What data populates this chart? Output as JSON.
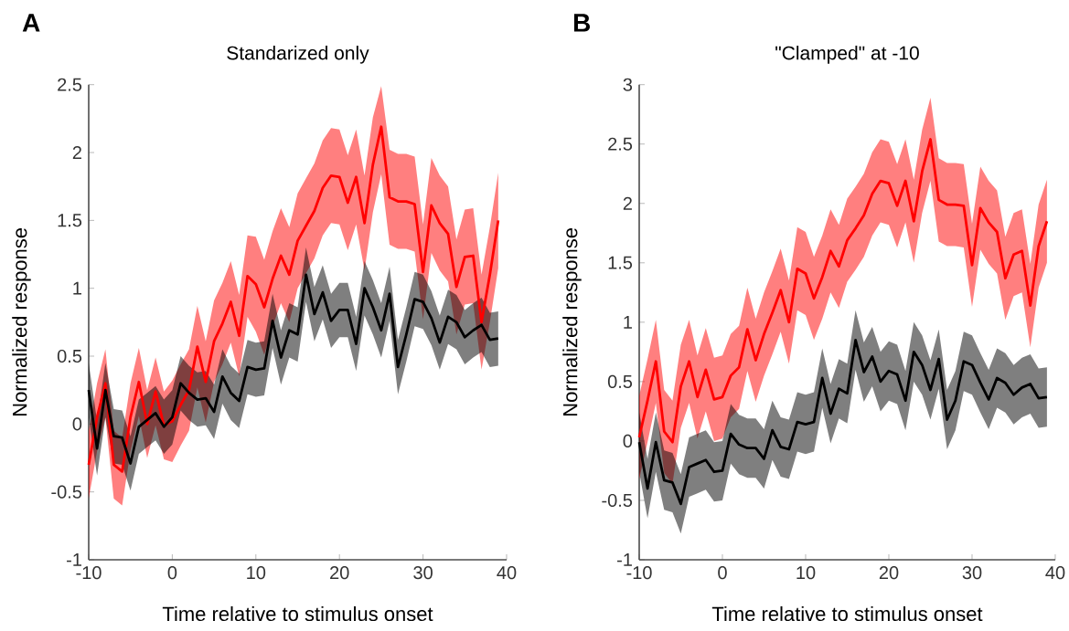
{
  "chart_data": [
    {
      "type": "line",
      "title": "Standarized only",
      "xlabel": "Time relative to stimulus onset",
      "ylabel": "Normalized response",
      "annotations": [
        "A"
      ],
      "x": [
        -10,
        -9,
        -8,
        -7,
        -6,
        -5,
        -4,
        -3,
        -2,
        -1,
        0,
        1,
        2,
        3,
        4,
        5,
        6,
        7,
        8,
        9,
        10,
        11,
        12,
        13,
        14,
        15,
        16,
        17,
        18,
        19,
        20,
        21,
        22,
        23,
        24,
        25,
        26,
        27,
        28,
        29,
        30,
        31,
        32,
        33,
        34,
        35,
        36,
        37,
        38,
        39
      ],
      "xlim": [
        -10,
        40
      ],
      "xticks": [
        -10,
        0,
        10,
        20,
        30,
        40
      ],
      "ylim": [
        -1,
        2.5
      ],
      "yticks": [
        -1,
        -0.5,
        0,
        0.5,
        1,
        1.5,
        2,
        2.5
      ],
      "series": [
        {
          "color": "#ff0000",
          "values": [
            -0.3,
            0.05,
            0.3,
            -0.3,
            -0.35,
            0.05,
            0.31,
            0.0,
            0.24,
            -0.01,
            0.02,
            0.14,
            0.25,
            0.57,
            0.31,
            0.61,
            0.74,
            0.9,
            0.65,
            1.09,
            1.03,
            0.86,
            1.07,
            1.24,
            1.1,
            1.35,
            1.46,
            1.57,
            1.74,
            1.83,
            1.82,
            1.63,
            1.82,
            1.48,
            1.91,
            2.19,
            1.67,
            1.64,
            1.64,
            1.62,
            1.12,
            1.61,
            1.48,
            1.4,
            1.01,
            1.23,
            1.24,
            0.75,
            1.1,
            1.5
          ],
          "upper": [
            -0.05,
            0.3,
            0.55,
            -0.05,
            -0.1,
            0.3,
            0.56,
            0.25,
            0.49,
            0.24,
            0.32,
            0.44,
            0.55,
            0.87,
            0.61,
            0.91,
            1.04,
            1.2,
            0.95,
            1.39,
            1.38,
            1.21,
            1.42,
            1.59,
            1.45,
            1.7,
            1.81,
            1.92,
            2.09,
            2.18,
            2.17,
            1.98,
            2.17,
            1.83,
            2.26,
            2.49,
            2.02,
            1.99,
            1.99,
            1.97,
            1.47,
            1.96,
            1.83,
            1.75,
            1.36,
            1.58,
            1.59,
            1.1,
            1.45,
            1.85
          ],
          "lower": [
            -0.55,
            -0.2,
            0.05,
            -0.55,
            -0.6,
            -0.2,
            0.06,
            -0.25,
            -0.01,
            -0.26,
            -0.28,
            -0.16,
            -0.05,
            0.27,
            0.01,
            0.31,
            0.44,
            0.6,
            0.35,
            0.79,
            0.68,
            0.51,
            0.72,
            0.89,
            0.75,
            1.0,
            1.11,
            1.22,
            1.39,
            1.48,
            1.47,
            1.28,
            1.47,
            1.13,
            1.56,
            1.84,
            1.32,
            1.29,
            1.29,
            1.27,
            0.77,
            1.26,
            1.13,
            1.05,
            0.66,
            0.88,
            0.89,
            0.4,
            0.75,
            1.15
          ]
        },
        {
          "color": "#000000",
          "values": [
            0.25,
            -0.18,
            0.25,
            -0.09,
            -0.1,
            -0.29,
            -0.02,
            0.03,
            0.08,
            -0.02,
            0.05,
            0.3,
            0.23,
            0.18,
            0.19,
            0.09,
            0.35,
            0.23,
            0.17,
            0.42,
            0.4,
            0.41,
            0.76,
            0.49,
            0.69,
            0.66,
            1.1,
            0.81,
            0.97,
            0.76,
            0.84,
            0.84,
            0.59,
            1.0,
            0.86,
            0.69,
            0.96,
            0.42,
            0.66,
            0.92,
            0.9,
            0.78,
            0.6,
            0.79,
            0.75,
            0.64,
            0.69,
            0.73,
            0.62,
            0.63
          ],
          "upper": [
            0.45,
            0.02,
            0.45,
            0.11,
            0.1,
            -0.09,
            0.18,
            0.23,
            0.28,
            0.18,
            0.25,
            0.5,
            0.43,
            0.38,
            0.39,
            0.29,
            0.55,
            0.43,
            0.37,
            0.62,
            0.6,
            0.61,
            0.96,
            0.69,
            0.89,
            0.86,
            1.3,
            1.01,
            1.17,
            0.96,
            1.04,
            1.04,
            0.79,
            1.2,
            1.06,
            0.89,
            1.16,
            0.62,
            0.86,
            1.12,
            1.1,
            0.98,
            0.8,
            0.99,
            0.95,
            0.84,
            0.89,
            0.93,
            0.82,
            0.83
          ],
          "lower": [
            0.05,
            -0.38,
            0.05,
            -0.29,
            -0.3,
            -0.49,
            -0.22,
            -0.17,
            -0.12,
            -0.22,
            -0.15,
            0.1,
            0.03,
            -0.02,
            -0.01,
            -0.11,
            0.15,
            0.03,
            -0.03,
            0.22,
            0.2,
            0.21,
            0.56,
            0.29,
            0.49,
            0.46,
            0.9,
            0.61,
            0.77,
            0.56,
            0.64,
            0.64,
            0.39,
            0.8,
            0.66,
            0.49,
            0.76,
            0.22,
            0.46,
            0.72,
            0.7,
            0.58,
            0.4,
            0.59,
            0.55,
            0.44,
            0.49,
            0.53,
            0.42,
            0.43
          ]
        }
      ]
    },
    {
      "type": "line",
      "title": "\"Clamped\" at -10",
      "xlabel": "Time relative to stimulus onset",
      "ylabel": "Normalized response",
      "annotations": [
        "B"
      ],
      "x": [
        -10,
        -9,
        -8,
        -7,
        -6,
        -5,
        -4,
        -3,
        -2,
        -1,
        0,
        1,
        2,
        3,
        4,
        5,
        6,
        7,
        8,
        9,
        10,
        11,
        12,
        13,
        14,
        15,
        16,
        17,
        18,
        19,
        20,
        21,
        22,
        23,
        24,
        25,
        26,
        27,
        28,
        29,
        30,
        31,
        32,
        33,
        34,
        35,
        36,
        37,
        38,
        39
      ],
      "xlim": [
        -10,
        40
      ],
      "xticks": [
        -10,
        0,
        10,
        20,
        30,
        40
      ],
      "ylim": [
        -1,
        3
      ],
      "yticks": [
        -1,
        -0.5,
        0,
        0.5,
        1,
        1.5,
        2,
        2.5,
        3
      ],
      "series": [
        {
          "color": "#ff0000",
          "values": [
            0.03,
            0.34,
            0.67,
            0.08,
            -0.01,
            0.46,
            0.67,
            0.37,
            0.6,
            0.35,
            0.37,
            0.55,
            0.62,
            0.94,
            0.68,
            0.9,
            1.08,
            1.27,
            1.0,
            1.45,
            1.41,
            1.2,
            1.38,
            1.6,
            1.47,
            1.69,
            1.79,
            1.9,
            2.08,
            2.19,
            2.17,
            1.98,
            2.19,
            1.85,
            2.27,
            2.54,
            2.03,
            1.99,
            1.99,
            1.98,
            1.48,
            1.96,
            1.84,
            1.76,
            1.37,
            1.57,
            1.6,
            1.14,
            1.64,
            1.85
          ],
          "upper": [
            0.38,
            0.69,
            1.02,
            0.43,
            0.34,
            0.81,
            1.02,
            0.72,
            0.95,
            0.7,
            0.72,
            0.9,
            0.97,
            1.29,
            1.03,
            1.25,
            1.43,
            1.62,
            1.35,
            1.8,
            1.76,
            1.55,
            1.73,
            1.95,
            1.82,
            2.04,
            2.14,
            2.25,
            2.43,
            2.54,
            2.52,
            2.33,
            2.54,
            2.2,
            2.62,
            2.89,
            2.38,
            2.34,
            2.34,
            2.33,
            1.83,
            2.31,
            2.19,
            2.11,
            1.72,
            1.92,
            1.95,
            1.49,
            1.99,
            2.2
          ],
          "lower": [
            -0.32,
            -0.01,
            0.32,
            -0.27,
            -0.36,
            0.11,
            0.32,
            0.02,
            0.25,
            0.0,
            0.02,
            0.2,
            0.27,
            0.59,
            0.33,
            0.55,
            0.73,
            0.92,
            0.65,
            1.1,
            1.06,
            0.85,
            1.03,
            1.25,
            1.12,
            1.34,
            1.44,
            1.55,
            1.73,
            1.84,
            1.82,
            1.63,
            1.84,
            1.5,
            1.92,
            2.19,
            1.68,
            1.64,
            1.64,
            1.63,
            1.13,
            1.61,
            1.49,
            1.41,
            1.02,
            1.22,
            1.25,
            0.79,
            1.29,
            1.5
          ]
        },
        {
          "color": "#000000",
          "values": [
            -0.01,
            -0.4,
            -0.01,
            -0.33,
            -0.35,
            -0.53,
            -0.22,
            -0.19,
            -0.16,
            -0.26,
            -0.25,
            0.06,
            -0.03,
            -0.06,
            -0.06,
            -0.15,
            0.09,
            -0.05,
            -0.07,
            0.16,
            0.14,
            0.16,
            0.53,
            0.23,
            0.44,
            0.4,
            0.85,
            0.58,
            0.71,
            0.5,
            0.59,
            0.56,
            0.34,
            0.75,
            0.64,
            0.43,
            0.69,
            0.18,
            0.34,
            0.67,
            0.64,
            0.49,
            0.35,
            0.53,
            0.49,
            0.39,
            0.45,
            0.48,
            0.36,
            0.37
          ],
          "upper": [
            0.24,
            -0.15,
            0.24,
            -0.08,
            -0.1,
            -0.28,
            0.03,
            0.06,
            0.09,
            -0.01,
            0.0,
            0.31,
            0.22,
            0.19,
            0.19,
            0.1,
            0.34,
            0.2,
            0.18,
            0.41,
            0.39,
            0.41,
            0.78,
            0.48,
            0.69,
            0.65,
            1.1,
            0.83,
            0.96,
            0.75,
            0.84,
            0.81,
            0.59,
            1.0,
            0.89,
            0.68,
            0.94,
            0.43,
            0.59,
            0.92,
            0.89,
            0.74,
            0.6,
            0.78,
            0.74,
            0.64,
            0.7,
            0.73,
            0.61,
            0.62
          ],
          "lower": [
            -0.26,
            -0.65,
            -0.26,
            -0.58,
            -0.6,
            -0.78,
            -0.47,
            -0.44,
            -0.41,
            -0.51,
            -0.5,
            -0.19,
            -0.28,
            -0.31,
            -0.31,
            -0.4,
            -0.16,
            -0.3,
            -0.32,
            -0.09,
            -0.11,
            -0.09,
            0.28,
            -0.02,
            0.19,
            0.15,
            0.6,
            0.33,
            0.46,
            0.25,
            0.34,
            0.31,
            0.09,
            0.5,
            0.39,
            0.18,
            0.44,
            -0.07,
            0.09,
            0.42,
            0.39,
            0.24,
            0.1,
            0.28,
            0.24,
            0.14,
            0.2,
            0.23,
            0.11,
            0.12
          ]
        }
      ]
    }
  ]
}
